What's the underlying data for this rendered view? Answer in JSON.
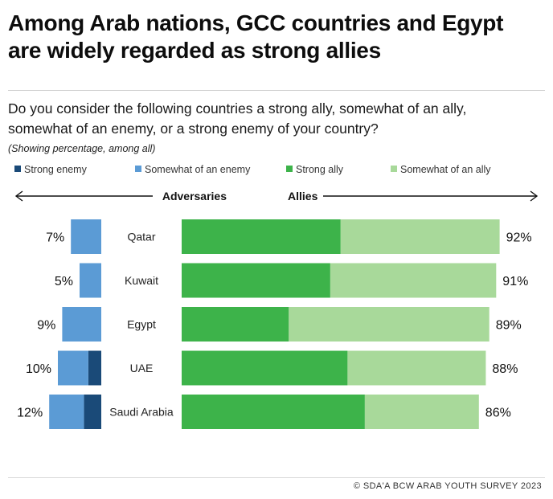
{
  "title": "Among Arab nations, GCC countries and Egypt are widely regarded as strong allies",
  "question": "Do you consider the following countries a strong ally, somewhat of an ally, somewhat of an enemy, or a strong enemy of your country?",
  "subnote": "(Showing percentage, among all)",
  "source": "© SDA'A BCW ARAB YOUTH SURVEY 2023",
  "colors": {
    "strong_enemy": "#1a4a78",
    "somewhat_enemy": "#5b9bd5",
    "strong_ally": "#3db34a",
    "somewhat_ally": "#a8d99a"
  },
  "chart_data": {
    "type": "bar",
    "orientation": "horizontal-diverging",
    "title": "Among Arab nations, GCC countries and Egypt are widely regarded as strong allies",
    "left_label": "Adversaries",
    "right_label": "Allies",
    "legend": [
      {
        "key": "strong_enemy",
        "label": "Strong enemy"
      },
      {
        "key": "somewhat_enemy",
        "label": "Somewhat of an enemy"
      },
      {
        "key": "strong_ally",
        "label": "Strong ally"
      },
      {
        "key": "somewhat_ally",
        "label": "Somewhat of an ally"
      }
    ],
    "categories": [
      "Qatar",
      "Kuwait",
      "Egypt",
      "UAE",
      "Saudi Arabia"
    ],
    "series": [
      {
        "name": "Strong enemy",
        "key": "strong_enemy",
        "values": [
          0,
          0,
          0,
          3,
          4
        ]
      },
      {
        "name": "Somewhat of an enemy",
        "key": "somewhat_enemy",
        "values": [
          7,
          5,
          9,
          7,
          8
        ]
      },
      {
        "name": "Strong ally",
        "key": "strong_ally",
        "values": [
          46,
          43,
          31,
          48,
          53
        ]
      },
      {
        "name": "Somewhat of an ally",
        "key": "somewhat_ally",
        "values": [
          46,
          48,
          58,
          40,
          33
        ]
      }
    ],
    "enemy_totals": [
      "7%",
      "5%",
      "9%",
      "10%",
      "12%"
    ],
    "ally_totals": [
      "92%",
      "91%",
      "89%",
      "88%",
      "86%"
    ]
  }
}
